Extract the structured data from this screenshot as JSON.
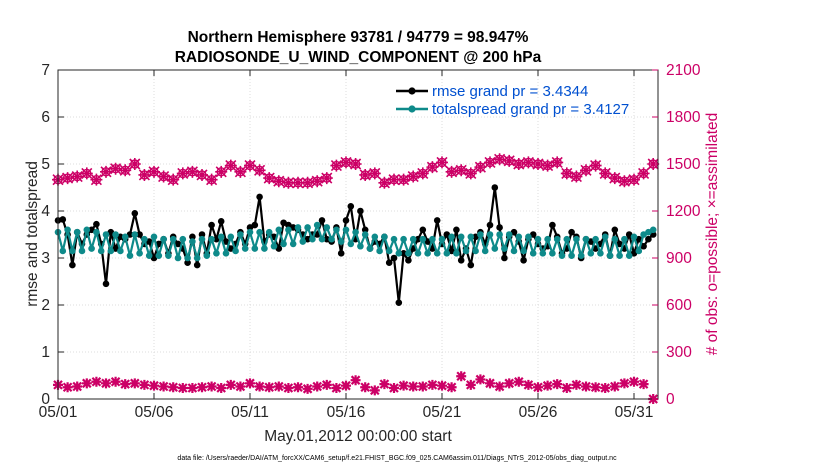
{
  "chart_data": {
    "type": "line",
    "title": "Northern Hemisphere 93781 / 94779 = 98.947%",
    "subtitle": "RADIOSONDE_U_WIND_COMPONENT @ 200 hPa",
    "xlabel": "May.01,2012 00:00:00 start",
    "ylabel": "rmse and totalspread",
    "ylabel_right": "# of obs: o=possible; ×=assimilated",
    "x_ticks": [
      "05/01",
      "05/06",
      "05/11",
      "05/16",
      "05/21",
      "05/26",
      "05/31"
    ],
    "x_tick_values": [
      0,
      5,
      10,
      15,
      20,
      25,
      30
    ],
    "xlim": [
      0,
      31.25
    ],
    "ylim": [
      0,
      7
    ],
    "y_ticks": [
      "0",
      "1",
      "2",
      "3",
      "4",
      "5",
      "6",
      "7"
    ],
    "y2lim": [
      0,
      2100
    ],
    "y2_ticks": [
      "0",
      "300",
      "600",
      "900",
      "1200",
      "1500",
      "1800",
      "2100"
    ],
    "grid": true,
    "legend_position": "top-right",
    "legend": [
      "rmse grand pr = 3.4344",
      "totalspread grand pr = 3.4127"
    ],
    "x": [
      0.0,
      0.25,
      0.5,
      0.75,
      1.0,
      1.25,
      1.5,
      1.75,
      2.0,
      2.25,
      2.5,
      2.75,
      3.0,
      3.25,
      3.5,
      3.75,
      4.0,
      4.25,
      4.5,
      4.75,
      5.0,
      5.25,
      5.5,
      5.75,
      6.0,
      6.25,
      6.5,
      6.75,
      7.0,
      7.25,
      7.5,
      7.75,
      8.0,
      8.25,
      8.5,
      8.75,
      9.0,
      9.25,
      9.5,
      9.75,
      10.0,
      10.25,
      10.5,
      10.75,
      11.0,
      11.25,
      11.5,
      11.75,
      12.0,
      12.25,
      12.5,
      12.75,
      13.0,
      13.25,
      13.5,
      13.75,
      14.0,
      14.25,
      14.5,
      14.75,
      15.0,
      15.25,
      15.5,
      15.75,
      16.0,
      16.25,
      16.5,
      16.75,
      17.0,
      17.25,
      17.5,
      17.75,
      18.0,
      18.25,
      18.5,
      18.75,
      19.0,
      19.25,
      19.5,
      19.75,
      20.0,
      20.25,
      20.5,
      20.75,
      21.0,
      21.25,
      21.5,
      21.75,
      22.0,
      22.25,
      22.5,
      22.75,
      23.0,
      23.25,
      23.5,
      23.75,
      24.0,
      24.25,
      24.5,
      24.75,
      25.0,
      25.25,
      25.5,
      25.75,
      26.0,
      26.25,
      26.5,
      26.75,
      27.0,
      27.25,
      27.5,
      27.75,
      28.0,
      28.25,
      28.5,
      28.75,
      29.0,
      29.25,
      29.5,
      29.75,
      30.0,
      30.25,
      30.5,
      30.75,
      31.0
    ],
    "series": [
      {
        "name": "rmse",
        "color": "#000000",
        "values": [
          3.8,
          3.82,
          3.5,
          2.85,
          3.55,
          3.3,
          3.5,
          3.6,
          3.72,
          3.3,
          2.45,
          3.55,
          3.2,
          3.45,
          3.4,
          3.5,
          3.95,
          3.5,
          3.3,
          3.35,
          3.0,
          3.3,
          3.4,
          3.1,
          3.45,
          3.3,
          3.2,
          2.9,
          3.45,
          2.85,
          3.5,
          3.1,
          3.7,
          3.4,
          3.78,
          3.35,
          3.2,
          3.3,
          3.55,
          3.3,
          3.65,
          3.7,
          4.3,
          3.35,
          3.5,
          3.45,
          3.2,
          3.75,
          3.7,
          3.65,
          3.6,
          3.5,
          3.4,
          3.5,
          3.5,
          3.8,
          3.4,
          3.35,
          3.65,
          3.1,
          3.8,
          4.1,
          3.4,
          4.0,
          3.6,
          3.2,
          3.35,
          3.3,
          3.45,
          2.9,
          3.0,
          2.05,
          3.1,
          2.95,
          3.2,
          3.4,
          3.6,
          3.35,
          3.2,
          3.8,
          3.3,
          3.5,
          3.15,
          3.6,
          2.95,
          3.2,
          2.85,
          3.45,
          3.55,
          3.3,
          3.7,
          4.5,
          3.65,
          3.0,
          3.45,
          3.55,
          3.35,
          2.95,
          3.4,
          3.5,
          3.3,
          3.2,
          3.25,
          3.7,
          3.45,
          3.1,
          3.2,
          3.55,
          3.45,
          3.0,
          3.4,
          3.35,
          3.2,
          3.3,
          3.5,
          3.05,
          3.6,
          3.3,
          3.2,
          3.5,
          3.1,
          3.4,
          3.25,
          3.4,
          3.5
        ]
      },
      {
        "name": "totalspread",
        "color": "#0e8a8a",
        "values": [
          3.55,
          3.15,
          3.6,
          3.15,
          3.55,
          3.15,
          3.6,
          3.2,
          3.55,
          3.15,
          3.5,
          3.15,
          3.5,
          3.15,
          3.45,
          3.05,
          3.5,
          3.1,
          3.4,
          3.05,
          3.45,
          3.05,
          3.4,
          3.05,
          3.4,
          3.0,
          3.4,
          3.0,
          3.35,
          3.0,
          3.4,
          3.05,
          3.4,
          3.1,
          3.45,
          3.1,
          3.45,
          3.15,
          3.5,
          3.2,
          3.55,
          3.2,
          3.55,
          3.2,
          3.55,
          3.25,
          3.6,
          3.3,
          3.6,
          3.3,
          3.65,
          3.35,
          3.65,
          3.4,
          3.7,
          3.4,
          3.65,
          3.4,
          3.6,
          3.35,
          3.6,
          3.3,
          3.55,
          3.25,
          3.5,
          3.2,
          3.45,
          3.15,
          3.45,
          3.15,
          3.4,
          3.1,
          3.4,
          3.1,
          3.4,
          3.1,
          3.4,
          3.1,
          3.4,
          3.1,
          3.4,
          3.1,
          3.45,
          3.1,
          3.45,
          3.15,
          3.45,
          3.15,
          3.5,
          3.15,
          3.5,
          3.2,
          3.5,
          3.2,
          3.5,
          3.15,
          3.45,
          3.15,
          3.45,
          3.1,
          3.4,
          3.1,
          3.4,
          3.1,
          3.4,
          3.05,
          3.4,
          3.05,
          3.4,
          3.05,
          3.4,
          3.1,
          3.4,
          3.1,
          3.45,
          3.05,
          3.4,
          3.05,
          3.4,
          3.05,
          3.45,
          3.15,
          3.5,
          3.55,
          3.6
        ]
      },
      {
        "name": "# obs possible",
        "axis": "right",
        "marker": "o",
        "color": "#cc0066",
        "x": [
          0.0,
          0.5,
          1.0,
          1.5,
          2.0,
          2.5,
          3.0,
          3.5,
          4.0,
          4.5,
          5.0,
          5.5,
          6.0,
          6.5,
          7.0,
          7.5,
          8.0,
          8.5,
          9.0,
          9.5,
          10.0,
          10.5,
          11.0,
          11.5,
          12.0,
          12.5,
          13.0,
          13.5,
          14.0,
          14.5,
          15.0,
          15.5,
          16.0,
          16.5,
          17.0,
          17.5,
          18.0,
          18.5,
          19.0,
          19.5,
          20.0,
          20.5,
          21.0,
          21.5,
          22.0,
          22.5,
          23.0,
          23.5,
          24.0,
          24.5,
          25.0,
          25.5,
          26.0,
          26.5,
          27.0,
          27.5,
          28.0,
          28.5,
          29.0,
          29.5,
          30.0,
          30.5,
          31.0
        ],
        "values": [
          1400,
          1410,
          1420,
          1440,
          1400,
          1450,
          1470,
          1460,
          1500,
          1430,
          1450,
          1420,
          1400,
          1440,
          1450,
          1430,
          1400,
          1450,
          1490,
          1450,
          1490,
          1460,
          1410,
          1390,
          1380,
          1380,
          1380,
          1390,
          1410,
          1490,
          1510,
          1500,
          1430,
          1440,
          1380,
          1400,
          1400,
          1420,
          1440,
          1480,
          1510,
          1450,
          1460,
          1440,
          1480,
          1510,
          1530,
          1520,
          1500,
          1510,
          1500,
          1490,
          1510,
          1440,
          1420,
          1460,
          1490,
          1440,
          1410,
          1390,
          1400,
          1440,
          1500
        ]
      },
      {
        "name": "# obs assimilated",
        "axis": "right",
        "marker": "x",
        "color": "#cc0066",
        "x": [
          0.0,
          0.5,
          1.0,
          1.5,
          2.0,
          2.5,
          3.0,
          3.5,
          4.0,
          4.5,
          5.0,
          5.5,
          6.0,
          6.5,
          7.0,
          7.5,
          8.0,
          8.5,
          9.0,
          9.5,
          10.0,
          10.5,
          11.0,
          11.5,
          12.0,
          12.5,
          13.0,
          13.5,
          14.0,
          14.5,
          15.0,
          15.5,
          16.0,
          16.5,
          17.0,
          17.5,
          18.0,
          18.5,
          19.0,
          19.5,
          20.0,
          20.5,
          21.0,
          21.5,
          22.0,
          22.5,
          23.0,
          23.5,
          24.0,
          24.5,
          25.0,
          25.5,
          26.0,
          26.5,
          27.0,
          27.5,
          28.0,
          28.5,
          29.0,
          29.5,
          30.0,
          30.5,
          31.0
        ],
        "values": [
          90,
          75,
          80,
          100,
          110,
          100,
          110,
          95,
          100,
          90,
          85,
          80,
          75,
          70,
          70,
          75,
          80,
          70,
          90,
          80,
          100,
          80,
          75,
          80,
          70,
          75,
          65,
          80,
          90,
          70,
          85,
          120,
          75,
          55,
          95,
          70,
          85,
          80,
          80,
          90,
          85,
          75,
          145,
          90,
          125,
          100,
          80,
          100,
          110,
          90,
          75,
          85,
          95,
          70,
          90,
          80,
          75,
          70,
          80,
          100,
          110,
          95,
          0
        ]
      }
    ]
  },
  "footnote": "data file: /Users/raeder/DAI/ATM_forcXX/CAM6_setup/f.e21.FHIST_BGC.f09_025.CAM6assim.011/Diags_NTrS_2012-05/obs_diag_output.nc"
}
